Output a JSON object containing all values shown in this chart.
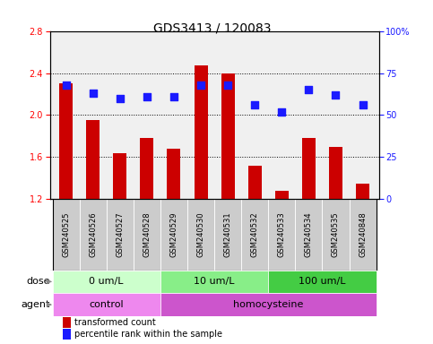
{
  "title": "GDS3413 / 120083",
  "samples": [
    "GSM240525",
    "GSM240526",
    "GSM240527",
    "GSM240528",
    "GSM240529",
    "GSM240530",
    "GSM240531",
    "GSM240532",
    "GSM240533",
    "GSM240534",
    "GSM240535",
    "GSM240848"
  ],
  "red_values": [
    2.3,
    1.95,
    1.64,
    1.78,
    1.68,
    2.47,
    2.4,
    1.52,
    1.28,
    1.78,
    1.7,
    1.35
  ],
  "blue_values_pct": [
    68,
    63,
    60,
    61,
    61,
    68,
    68,
    56,
    52,
    65,
    62,
    56
  ],
  "ylim_left": [
    1.2,
    2.8
  ],
  "yticks_left": [
    1.2,
    1.6,
    2.0,
    2.4,
    2.8
  ],
  "ylim_right": [
    0,
    100
  ],
  "yticks_right": [
    0,
    25,
    50,
    75,
    100
  ],
  "bar_color": "#cc0000",
  "dot_color": "#1a1aff",
  "bar_width": 0.5,
  "dot_size": 40,
  "grid_yticks": [
    1.6,
    2.0,
    2.4
  ],
  "bg_color": "#f0f0f0",
  "sample_box_color": "#cccccc",
  "dose_groups": [
    {
      "label": "0 um/L",
      "start": 0,
      "end": 4,
      "color": "#ccffcc"
    },
    {
      "label": "10 um/L",
      "start": 4,
      "end": 8,
      "color": "#88ee88"
    },
    {
      "label": "100 um/L",
      "start": 8,
      "end": 12,
      "color": "#44cc44"
    }
  ],
  "agent_groups": [
    {
      "label": "control",
      "start": 0,
      "end": 4,
      "color": "#ee88ee"
    },
    {
      "label": "homocysteine",
      "start": 4,
      "end": 12,
      "color": "#cc55cc"
    }
  ],
  "legend_items": [
    {
      "label": "transformed count",
      "color": "#cc0000"
    },
    {
      "label": "percentile rank within the sample",
      "color": "#1a1aff"
    }
  ],
  "row_label_dose": "dose",
  "row_label_agent": "agent",
  "title_fontsize": 10,
  "tick_fontsize": 7,
  "sample_fontsize": 6,
  "row_fontsize": 8,
  "legend_fontsize": 7
}
